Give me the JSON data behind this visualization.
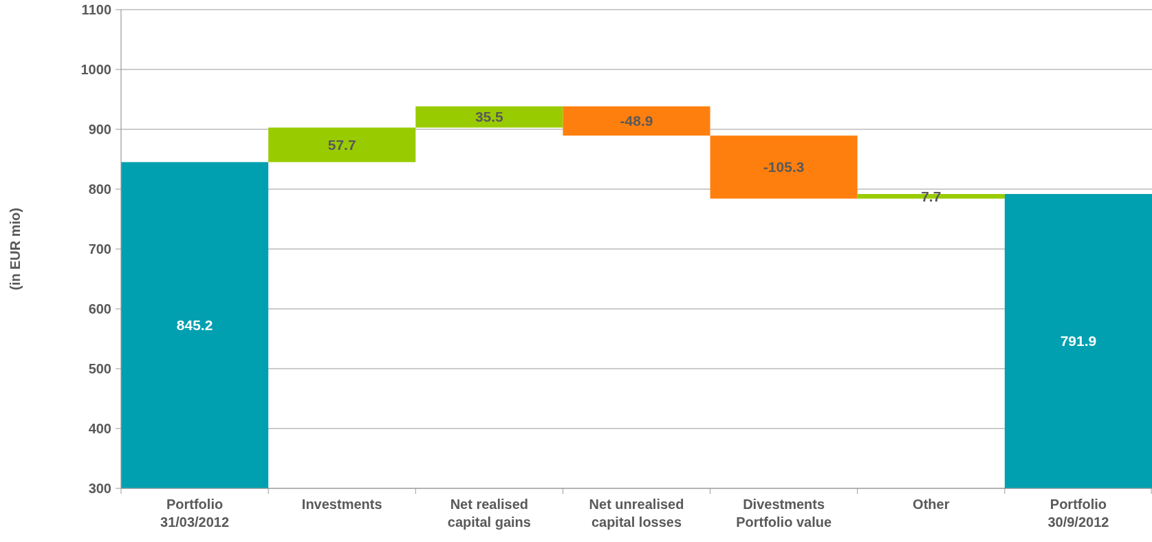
{
  "chart_data": {
    "type": "bar",
    "ylabel": "(in EUR mio)",
    "categories": [
      "Portfolio\n31/03/2012",
      "Investments",
      "Net realised\ncapital gains",
      "Net unrealised\ncapital losses",
      "Divestments\nPortfolio value",
      "Other",
      "Portfolio\n30/9/2012"
    ],
    "base": [
      300,
      845.2,
      902.9,
      938.4,
      889.5,
      784.2,
      300
    ],
    "values": [
      545.2,
      57.7,
      35.5,
      -48.9,
      -105.3,
      7.7,
      491.9
    ],
    "value_labels": [
      "845.2",
      "57.7",
      "35.5",
      "-48.9",
      "-105.3",
      "7.7",
      "791.9"
    ],
    "colors": [
      "#00a0b0",
      "#99cc00",
      "#99cc00",
      "#ff7f0e",
      "#ff7f0e",
      "#99cc00",
      "#00a0b0"
    ],
    "ylim": [
      300,
      1100
    ],
    "yticks": [
      300,
      400,
      500,
      600,
      700,
      800,
      900,
      1000,
      1100
    ],
    "grid": "y"
  }
}
